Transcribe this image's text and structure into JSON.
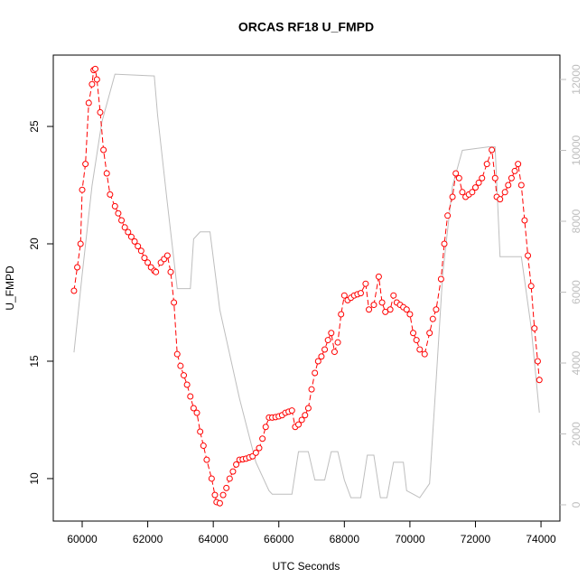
{
  "chart_data": {
    "type": "line",
    "title": "ORCAS RF18 U_FMPD",
    "x_label": "UTC Seconds",
    "y_label": "U_FMPD",
    "xlim": [
      59118,
      74577
    ],
    "ylim": [
      8.19,
      28.04
    ],
    "y2lim": [
      -459,
      12688
    ],
    "xticks": [
      60000,
      62000,
      64000,
      66000,
      68000,
      70000,
      72000,
      74000
    ],
    "yticks": [
      10,
      15,
      20,
      25
    ],
    "y2ticks": [
      0,
      2000,
      4000,
      6000,
      8000,
      10000,
      12000
    ],
    "series": [
      {
        "color": "#ff0000",
        "marker": "circle",
        "x": [
          59750,
          59850,
          59950,
          60000,
          60100,
          60200,
          60300,
          60350,
          60400,
          60450,
          60550,
          60650,
          60750,
          60850,
          61000,
          61100,
          61200,
          61300,
          61400,
          61500,
          61600,
          61700,
          61800,
          61900,
          62000,
          62100,
          62200,
          62250,
          62400,
          62500,
          62600,
          62700,
          62800,
          62900,
          63000,
          63100,
          63200,
          63300,
          63400,
          63500,
          63600,
          63700,
          63800,
          63950,
          64050,
          64100,
          64200,
          64300,
          64400,
          64500,
          64600,
          64700,
          64800,
          64900,
          65000,
          65100,
          65200,
          65300,
          65400,
          65500,
          65600,
          65700,
          65800,
          65900,
          66000,
          66100,
          66200,
          66300,
          66400,
          66500,
          66600,
          66700,
          66800,
          66900,
          67000,
          67100,
          67200,
          67300,
          67400,
          67500,
          67600,
          67700,
          67800,
          67900,
          68000,
          68100,
          68200,
          68300,
          68400,
          68500,
          68650,
          68750,
          68900,
          69050,
          69150,
          69250,
          69400,
          69500,
          69600,
          69700,
          69800,
          69900,
          70000,
          70100,
          70200,
          70300,
          70450,
          70600,
          70700,
          70800,
          70950,
          71050,
          71150,
          71300,
          71400,
          71500,
          71600,
          71700,
          71800,
          71900,
          72000,
          72100,
          72200,
          72350,
          72500,
          72600,
          72650,
          72750,
          72900,
          73000,
          73100,
          73200,
          73300,
          73400,
          73500,
          73600,
          73700,
          73800,
          73900,
          73950
        ],
        "values": [
          18.0,
          19.0,
          20.0,
          22.3,
          23.4,
          26.0,
          26.8,
          27.4,
          27.45,
          27.0,
          25.6,
          24.0,
          23.0,
          22.1,
          21.6,
          21.3,
          21.0,
          20.7,
          20.5,
          20.3,
          20.1,
          19.9,
          19.7,
          19.4,
          19.2,
          19.0,
          18.85,
          18.8,
          19.2,
          19.35,
          19.5,
          18.8,
          17.5,
          15.3,
          14.8,
          14.4,
          14.0,
          13.5,
          13.0,
          12.8,
          12.0,
          11.4,
          10.8,
          10.0,
          9.3,
          9.0,
          8.95,
          9.3,
          9.6,
          10.0,
          10.3,
          10.6,
          10.8,
          10.82,
          10.85,
          10.9,
          10.95,
          11.1,
          11.3,
          11.7,
          12.2,
          12.6,
          12.6,
          12.62,
          12.65,
          12.7,
          12.8,
          12.85,
          12.9,
          12.2,
          12.3,
          12.5,
          12.7,
          13.0,
          13.8,
          14.5,
          15.0,
          15.2,
          15.5,
          15.9,
          16.2,
          15.4,
          15.8,
          17.0,
          17.8,
          17.6,
          17.7,
          17.8,
          17.85,
          17.9,
          18.3,
          17.2,
          17.4,
          18.6,
          17.5,
          17.1,
          17.2,
          17.8,
          17.5,
          17.4,
          17.3,
          17.2,
          17.0,
          16.2,
          15.9,
          15.5,
          15.3,
          16.2,
          16.8,
          17.2,
          18.5,
          20.0,
          21.2,
          22.0,
          23.0,
          22.8,
          22.2,
          22.0,
          22.1,
          22.2,
          22.4,
          22.6,
          22.8,
          23.4,
          24.0,
          22.8,
          22.0,
          21.9,
          22.2,
          22.5,
          22.8,
          23.1,
          23.4,
          22.5,
          21.0,
          19.5,
          18.2,
          16.4,
          15.0,
          14.2
        ]
      },
      {
        "color": "#bebebe",
        "axis": "y2",
        "x": [
          59750,
          60000,
          60300,
          60600,
          61000,
          62200,
          62300,
          62600,
          62900,
          63300,
          63400,
          63600,
          63900,
          64200,
          64800,
          65300,
          65700,
          65800,
          66200,
          66400,
          66600,
          66900,
          67100,
          67400,
          67600,
          67800,
          68000,
          68200,
          68500,
          68700,
          68900,
          69100,
          69300,
          69500,
          69800,
          69900,
          70100,
          70300,
          70600,
          70800,
          71000,
          71300,
          71600,
          72400,
          72600,
          72750,
          73100,
          73400,
          73700,
          73950
        ],
        "values": [
          4300,
          6500,
          9000,
          10800,
          12150,
          12100,
          11000,
          8500,
          6100,
          6100,
          7500,
          7700,
          7700,
          5500,
          3000,
          1200,
          400,
          300,
          300,
          300,
          1500,
          1500,
          700,
          700,
          1500,
          1500,
          700,
          200,
          200,
          1400,
          1400,
          200,
          200,
          1200,
          1200,
          400,
          300,
          200,
          600,
          3500,
          6500,
          9000,
          10000,
          10100,
          10100,
          7000,
          7000,
          7000,
          5000,
          2600
        ]
      }
    ]
  }
}
